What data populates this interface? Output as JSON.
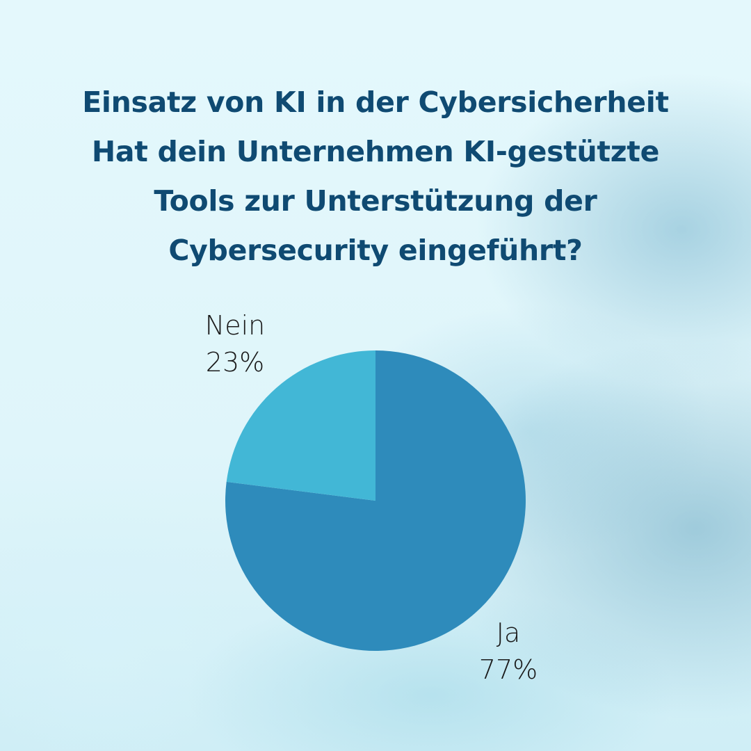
{
  "chart_data": {
    "type": "pie",
    "title": "Einsatz von KI in der Cybersicherheit",
    "subtitle_lines": [
      "Hat dein Unternehmen KI-gestützte",
      "Tools zur Unterstützung der",
      "Cybersecurity eingeführt?"
    ],
    "slices": [
      {
        "label": "Ja",
        "value": 77,
        "value_label": "77%",
        "color": "#2e8bbb"
      },
      {
        "label": "Nein",
        "value": 23,
        "value_label": "23%",
        "color": "#42b7d6"
      }
    ]
  }
}
